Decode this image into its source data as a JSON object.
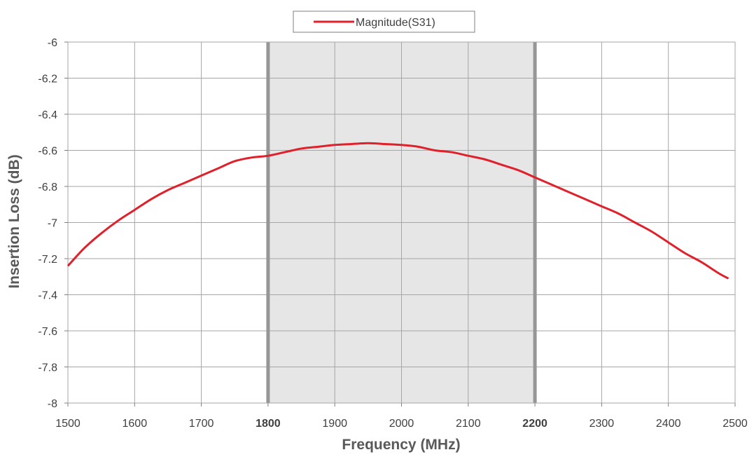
{
  "chart_data": {
    "type": "line",
    "title": "",
    "xlabel": "Frequency (MHz)",
    "ylabel": "Insertion Loss (dB)",
    "xlim": [
      1500,
      2500
    ],
    "ylim": [
      -8,
      -6
    ],
    "x_ticks": [
      1500,
      1600,
      1700,
      1800,
      1900,
      2000,
      2100,
      2200,
      2300,
      2400,
      2500
    ],
    "x_tick_labels": [
      "1500",
      "1600",
      "1700",
      "1800",
      "1900",
      "2000",
      "2100",
      "2200",
      "2300",
      "2400",
      "2500"
    ],
    "x_bold_ticks": [
      "1800",
      "2200"
    ],
    "y_ticks": [
      -6,
      -6.2,
      -6.4,
      -6.6,
      -6.8,
      -7,
      -7.2,
      -7.4,
      -7.6,
      -7.8,
      -8
    ],
    "y_tick_labels": [
      "-6",
      "-6.2",
      "-6.4",
      "-6.6",
      "-6.8",
      "-7",
      "-7.2",
      "-7.4",
      "-7.6",
      "-7.8",
      "-8"
    ],
    "grid": true,
    "legend_position": "top-center",
    "band": {
      "from": 1800,
      "to": 2200,
      "color": "#e6e6e6",
      "edge_color": "#969696"
    },
    "series": [
      {
        "name": "Magnitude(S31)",
        "color": "#e0202a",
        "x": [
          1500,
          1525,
          1550,
          1575,
          1600,
          1625,
          1650,
          1675,
          1700,
          1725,
          1750,
          1775,
          1800,
          1825,
          1850,
          1875,
          1900,
          1925,
          1950,
          1975,
          2000,
          2025,
          2050,
          2075,
          2100,
          2125,
          2150,
          2175,
          2200,
          2225,
          2250,
          2275,
          2300,
          2325,
          2350,
          2375,
          2400,
          2425,
          2450,
          2475,
          2490
        ],
        "y": [
          -7.24,
          -7.14,
          -7.06,
          -6.99,
          -6.93,
          -6.87,
          -6.82,
          -6.78,
          -6.74,
          -6.7,
          -6.66,
          -6.64,
          -6.63,
          -6.61,
          -6.59,
          -6.58,
          -6.57,
          -6.565,
          -6.56,
          -6.565,
          -6.57,
          -6.58,
          -6.6,
          -6.61,
          -6.63,
          -6.65,
          -6.68,
          -6.71,
          -6.75,
          -6.79,
          -6.83,
          -6.87,
          -6.91,
          -6.95,
          -7.0,
          -7.05,
          -7.11,
          -7.17,
          -7.22,
          -7.28,
          -7.31
        ]
      }
    ]
  }
}
